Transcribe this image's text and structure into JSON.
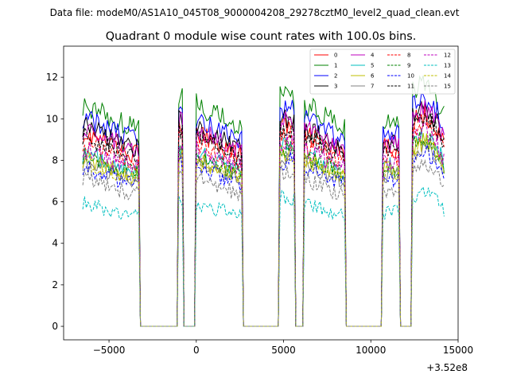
{
  "header": {
    "data_file": "Data file: modeM0/AS1A10_045T08_9000004208_29278cztM0_level2_quad_clean.evt"
  },
  "chart_data": {
    "type": "line",
    "title": "Quadrant 0 module wise count rates with 100.0s bins.",
    "xlabel": "",
    "ylabel": "",
    "x_offset_label": "+3.52e8",
    "xlim": [
      -7600,
      15000
    ],
    "ylim": [
      -0.65,
      13.5
    ],
    "xticks": [
      -5000,
      0,
      5000,
      10000,
      15000
    ],
    "xtick_labels": [
      "−5000",
      "0",
      "5000",
      "10000",
      "15000"
    ],
    "yticks": [
      0,
      2,
      4,
      6,
      8,
      10,
      12
    ],
    "ytick_labels": [
      "0",
      "2",
      "4",
      "6",
      "8",
      "10",
      "12"
    ],
    "legend_position": "top-right",
    "segments": [
      [
        -6500,
        -3300
      ],
      [
        -1000,
        -800
      ],
      [
        0,
        2600
      ],
      [
        4800,
        5400
      ],
      [
        5500,
        5600
      ],
      [
        6200,
        8500
      ],
      [
        10700,
        11600
      ],
      [
        12400,
        14200
      ]
    ],
    "series": [
      {
        "name": "0",
        "color": "#ff0000",
        "dash": "solid",
        "level": 8.6
      },
      {
        "name": "1",
        "color": "#008000",
        "dash": "solid",
        "level": 9.9
      },
      {
        "name": "2",
        "color": "#0000ff",
        "dash": "solid",
        "level": 9.3
      },
      {
        "name": "3",
        "color": "#000000",
        "dash": "solid",
        "level": 8.9
      },
      {
        "name": "4",
        "color": "#bf00bf",
        "dash": "solid",
        "level": 8.8
      },
      {
        "name": "5",
        "color": "#00bfbf",
        "dash": "solid",
        "level": 7.7
      },
      {
        "name": "6",
        "color": "#bfbf00",
        "dash": "solid",
        "level": 7.5
      },
      {
        "name": "7",
        "color": "#808080",
        "dash": "solid",
        "level": 7.3
      },
      {
        "name": "8",
        "color": "#ff0000",
        "dash": "dashed",
        "level": 8.2
      },
      {
        "name": "9",
        "color": "#008000",
        "dash": "dashed",
        "level": 7.6
      },
      {
        "name": "10",
        "color": "#0000ff",
        "dash": "dashed",
        "level": 7.1
      },
      {
        "name": "11",
        "color": "#000000",
        "dash": "dashed",
        "level": 8.5
      },
      {
        "name": "12",
        "color": "#bf00bf",
        "dash": "dashed",
        "level": 7.9
      },
      {
        "name": "13",
        "color": "#00bfbf",
        "dash": "dashed",
        "level": 5.5
      },
      {
        "name": "14",
        "color": "#bfbf00",
        "dash": "dashed",
        "level": 7.4
      },
      {
        "name": "15",
        "color": "#808080",
        "dash": "dashed",
        "level": 6.6
      }
    ]
  }
}
